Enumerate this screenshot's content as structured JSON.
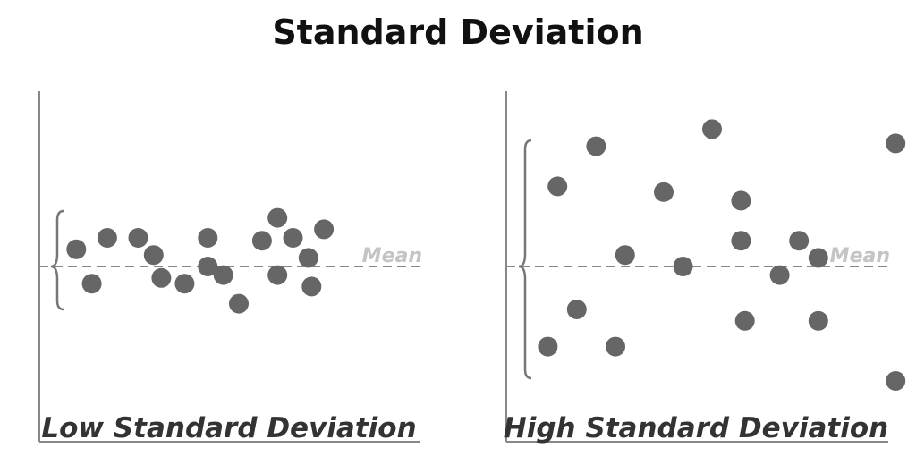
{
  "title": "Standard Deviation",
  "colors": {
    "dot": "#666666",
    "axis": "#888888",
    "mean_line": "#888888",
    "mean_label": "#c4c4c4",
    "bracket": "#777777"
  },
  "panels": [
    {
      "label": "Low Standard Deviation",
      "mean_label": "Mean",
      "points": [
        [
          1,
          0.6
        ],
        [
          2,
          -0.6
        ],
        [
          3,
          1.0
        ],
        [
          5,
          1.0
        ],
        [
          6,
          0.4
        ],
        [
          6.5,
          -0.4
        ],
        [
          8,
          -0.6
        ],
        [
          9.5,
          1.0
        ],
        [
          9.5,
          0.0
        ],
        [
          10.5,
          -0.3
        ],
        [
          11.5,
          -1.3
        ],
        [
          13,
          0.9
        ],
        [
          14,
          1.7
        ],
        [
          14,
          -0.3
        ],
        [
          15,
          1.0
        ],
        [
          16,
          0.3
        ],
        [
          16.2,
          -0.7
        ],
        [
          17,
          1.3
        ]
      ]
    },
    {
      "label": "High Standard Deviation",
      "mean_label": "Mean",
      "points": [
        [
          1.5,
          -2.8
        ],
        [
          2,
          2.8
        ],
        [
          3,
          -1.5
        ],
        [
          4,
          4.2
        ],
        [
          5,
          -2.8
        ],
        [
          5.5,
          0.4
        ],
        [
          7.5,
          2.6
        ],
        [
          8.5,
          0.0
        ],
        [
          10,
          4.8
        ],
        [
          11.5,
          2.3
        ],
        [
          11.5,
          0.9
        ],
        [
          11.7,
          -1.9
        ],
        [
          13.5,
          -0.3
        ],
        [
          14.5,
          0.9
        ],
        [
          15.5,
          0.3
        ],
        [
          15.5,
          -1.9
        ],
        [
          19.5,
          4.3
        ],
        [
          19.5,
          -4.0
        ]
      ]
    }
  ]
}
